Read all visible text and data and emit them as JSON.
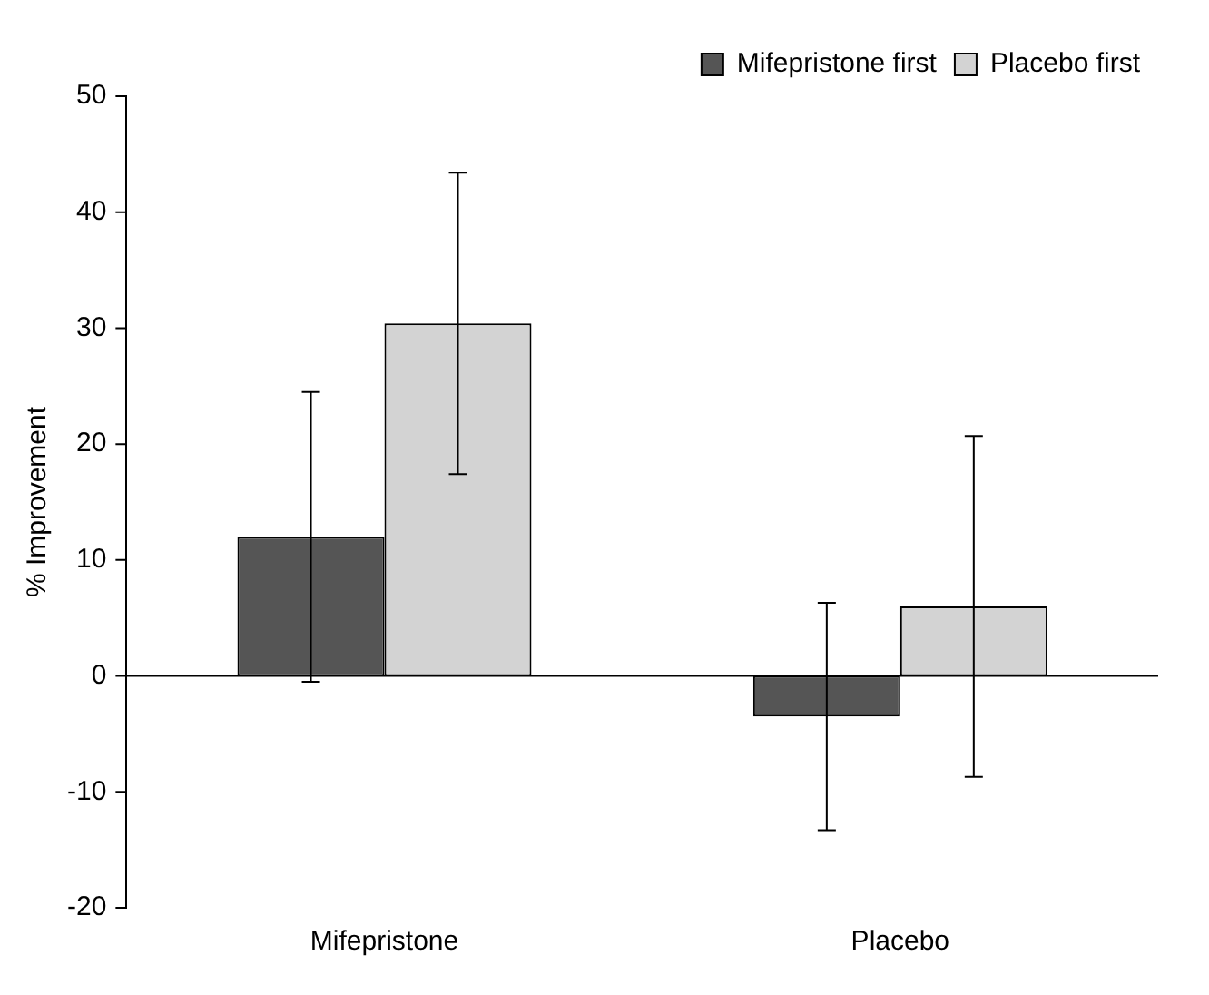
{
  "chart_data": {
    "type": "bar",
    "ylabel": "% Improvement",
    "categories": [
      "Mifepristone",
      "Placebo"
    ],
    "series": [
      {
        "name": "Mifepristone first",
        "color": "#555555",
        "values": [
          12,
          -3.5
        ],
        "errors": [
          12.5,
          9.8
        ]
      },
      {
        "name": "Placebo first",
        "color": "#d3d3d3",
        "values": [
          30.4,
          6
        ],
        "errors": [
          13,
          14.7
        ]
      }
    ],
    "ylim": [
      -20,
      50
    ],
    "yticks": [
      -20,
      -10,
      0,
      10,
      20,
      30,
      40,
      50
    ],
    "legend": "top right"
  }
}
